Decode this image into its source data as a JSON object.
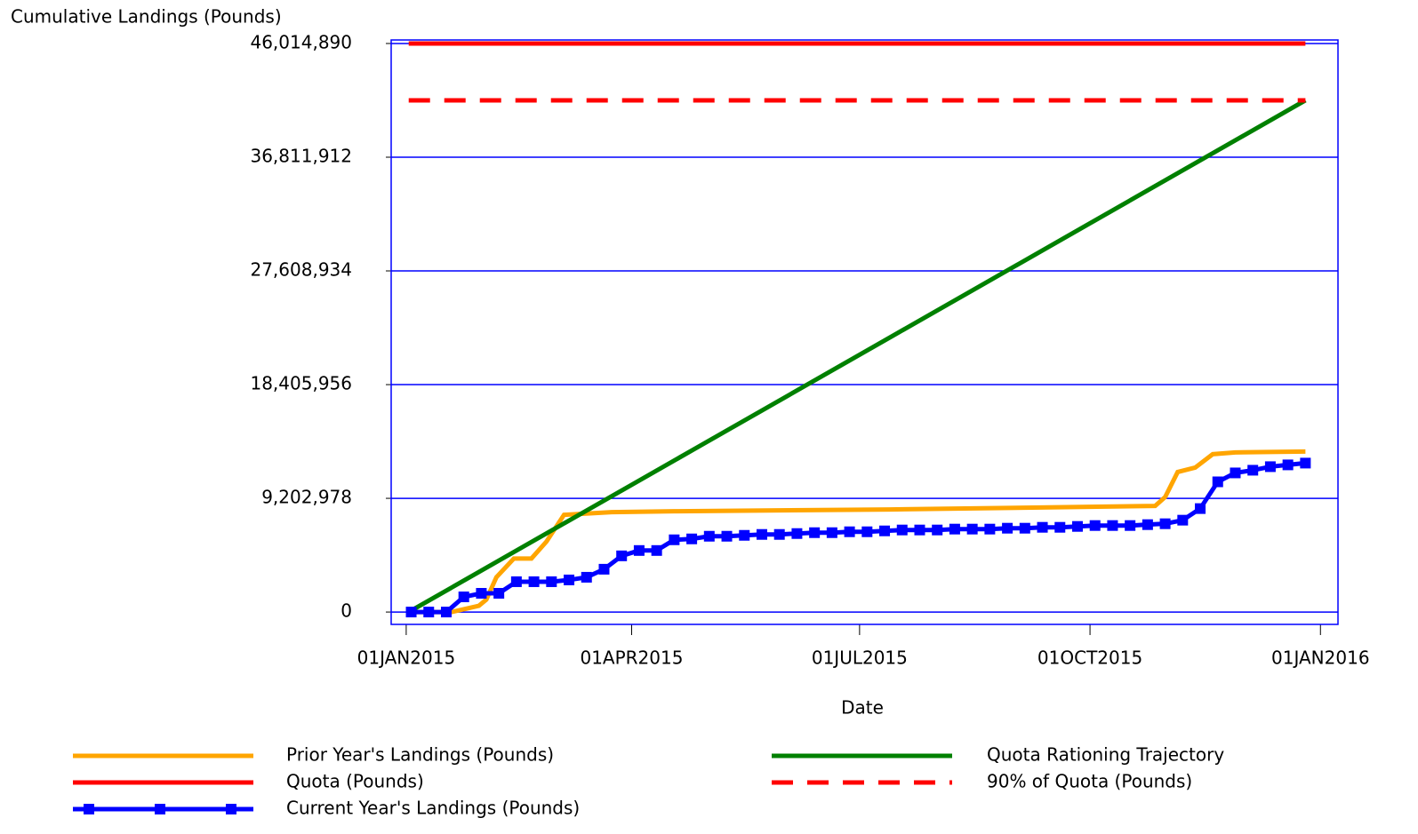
{
  "chart_data": {
    "type": "line",
    "ylabel": "Cumulative Landings (Pounds)",
    "xlabel": "Date",
    "ylim": [
      -1000000,
      46300000
    ],
    "yticks": [
      0,
      {
        "value": 9202978,
        "label": "9,202,978"
      },
      {
        "value": 18405956,
        "label": "18,405,956"
      },
      {
        "value": 27608934,
        "label": "27,608,934"
      },
      {
        "value": 36811912,
        "label": "36,811,912"
      },
      {
        "value": 46014890,
        "label": "46,014,890"
      }
    ],
    "xlim": [
      "2014-12-26",
      "2016-01-08"
    ],
    "xticks": [
      {
        "value": "2015-01-01",
        "label": "01JAN2015"
      },
      {
        "value": "2015-04-01",
        "label": "01APR2015"
      },
      {
        "value": "2015-07-01",
        "label": "01JUL2015"
      },
      {
        "value": "2015-10-01",
        "label": "01OCT2015"
      },
      {
        "value": "2016-01-01",
        "label": "01JAN2016"
      }
    ],
    "grid": true,
    "series": [
      {
        "name": "Prior Year's Landings (Pounds)",
        "color": "#ffa500",
        "x": [
          "2015-01-02",
          "2015-01-19",
          "2015-01-30",
          "2015-02-02",
          "2015-02-06",
          "2015-02-13",
          "2015-02-20",
          "2015-02-26",
          "2015-03-05",
          "2015-03-24",
          "2015-04-18",
          "2015-07-13",
          "2015-10-27",
          "2015-10-31",
          "2015-11-05",
          "2015-11-12",
          "2015-11-19",
          "2015-11-28",
          "2015-12-26"
        ],
        "values": [
          0,
          0,
          505000,
          1010000,
          2815000,
          4331000,
          4331000,
          5703000,
          7868000,
          8084000,
          8156000,
          8300000,
          8589000,
          9311000,
          11332000,
          11693000,
          12776000,
          12920000,
          12992000
        ]
      },
      {
        "name": "Quota Rationing Trajectory",
        "color": "#008000",
        "x": [
          "2015-01-02",
          "2015-12-26"
        ],
        "values": [
          0,
          41413401
        ]
      },
      {
        "name": "Quota (Pounds)",
        "color": "#ff0000",
        "x": [
          "2015-01-02",
          "2015-12-26"
        ],
        "values": [
          46014890,
          46014890
        ]
      },
      {
        "name": "90% of Quota (Pounds)",
        "color": "#ff0000",
        "dash": true,
        "x": [
          "2015-01-02",
          "2015-12-26"
        ],
        "values": [
          41413401,
          41413401
        ]
      },
      {
        "name": "Current Year's Landings (Pounds)",
        "color": "#0000ff",
        "marker": true,
        "x": [
          "2015-01-03",
          "2015-01-10",
          "2015-01-17",
          "2015-01-24",
          "2015-01-31",
          "2015-02-07",
          "2015-02-14",
          "2015-02-21",
          "2015-02-28",
          "2015-03-07",
          "2015-03-14",
          "2015-03-21",
          "2015-03-28",
          "2015-04-04",
          "2015-04-11",
          "2015-04-18",
          "2015-04-25",
          "2015-05-02",
          "2015-05-09",
          "2015-05-16",
          "2015-05-23",
          "2015-05-30",
          "2015-06-06",
          "2015-06-13",
          "2015-06-20",
          "2015-06-27",
          "2015-07-04",
          "2015-07-11",
          "2015-07-18",
          "2015-07-25",
          "2015-08-01",
          "2015-08-08",
          "2015-08-15",
          "2015-08-22",
          "2015-08-29",
          "2015-09-05",
          "2015-09-12",
          "2015-09-19",
          "2015-09-26",
          "2015-10-03",
          "2015-10-10",
          "2015-10-17",
          "2015-10-24",
          "2015-10-31",
          "2015-11-07",
          "2015-11-14",
          "2015-11-21",
          "2015-11-28",
          "2015-12-05",
          "2015-12-12",
          "2015-12-19",
          "2015-12-26"
        ],
        "values": [
          0,
          0,
          0,
          1227000,
          1516000,
          1516000,
          2454000,
          2454000,
          2454000,
          2598000,
          2815000,
          3465000,
          4547000,
          4980000,
          4980000,
          5847000,
          5919000,
          6135000,
          6135000,
          6207000,
          6280000,
          6280000,
          6352000,
          6424000,
          6424000,
          6496000,
          6496000,
          6568000,
          6641000,
          6641000,
          6641000,
          6713000,
          6713000,
          6713000,
          6785000,
          6785000,
          6857000,
          6857000,
          6929000,
          7001000,
          7001000,
          7001000,
          7074000,
          7146000,
          7435000,
          8373000,
          10538000,
          11260000,
          11477000,
          11765000,
          11910000,
          12054000
        ]
      }
    ]
  }
}
